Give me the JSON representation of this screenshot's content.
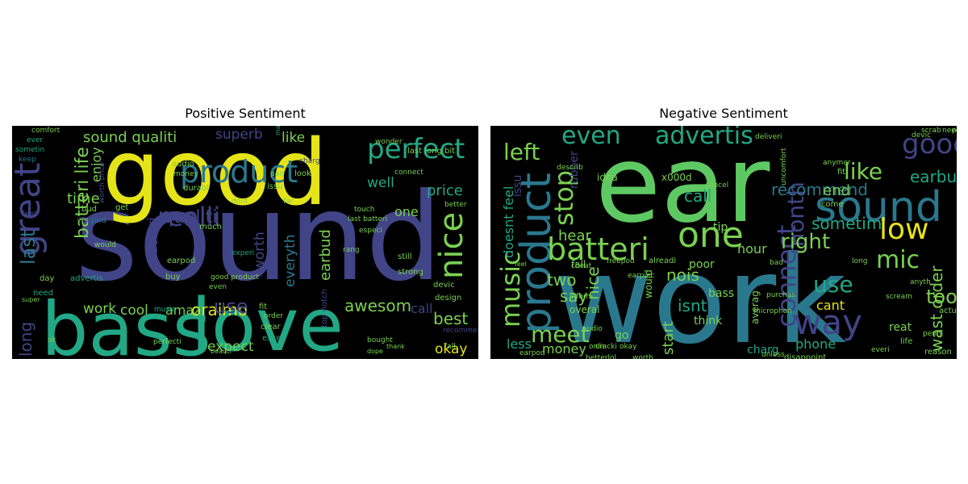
{
  "panels": [
    {
      "title": "Positive Sentiment",
      "words": [
        {
          "text": "sound",
          "color": "#414487"
        },
        {
          "text": "good",
          "color": "#e5e419"
        },
        {
          "text": "bass",
          "color": "#22a884"
        },
        {
          "text": "love",
          "color": "#22a884"
        },
        {
          "text": "product",
          "color": "#2a788e"
        },
        {
          "text": "great",
          "color": "#414487"
        },
        {
          "text": "realli",
          "color": "#414487"
        },
        {
          "text": "perfect",
          "color": "#22a884"
        },
        {
          "text": "nice",
          "color": "#7ad151"
        },
        {
          "text": "qualiti",
          "color": "#414487"
        },
        {
          "text": "batteri life",
          "color": "#7ad151"
        },
        {
          "text": "last",
          "color": "#2a788e"
        },
        {
          "text": "long",
          "color": "#414487"
        },
        {
          "text": "batteri",
          "color": "#414487"
        },
        {
          "text": "work",
          "color": "#7ad151"
        },
        {
          "text": "cool",
          "color": "#7ad151"
        },
        {
          "text": "oraimo",
          "color": "#e5e419"
        },
        {
          "text": "use",
          "color": "#414487"
        },
        {
          "text": "awesom",
          "color": "#7ad151"
        },
        {
          "text": "best",
          "color": "#7ad151"
        },
        {
          "text": "okay",
          "color": "#e5e419"
        },
        {
          "text": "expect",
          "color": "#7ad151"
        },
        {
          "text": "earbud",
          "color": "#7ad151"
        },
        {
          "text": "everyth",
          "color": "#2a788e"
        },
        {
          "text": "worth",
          "color": "#414487"
        },
        {
          "text": "amaz",
          "color": "#7ad151"
        },
        {
          "text": "time",
          "color": "#7ad151"
        },
        {
          "text": "enjoy",
          "color": "#7ad151"
        },
        {
          "text": "sound qualiti",
          "color": "#7ad151"
        },
        {
          "text": "superb",
          "color": "#414487"
        },
        {
          "text": "like",
          "color": "#7ad151"
        },
        {
          "text": "price",
          "color": "#22a884"
        },
        {
          "text": "one",
          "color": "#7ad151"
        },
        {
          "text": "well",
          "color": "#22a884"
        },
        {
          "text": "call",
          "color": "#414487"
        },
        {
          "text": "comfort",
          "color": "#7ad151"
        },
        {
          "text": "ever",
          "color": "#22a884"
        },
        {
          "text": "sometin",
          "color": "#22a884"
        },
        {
          "text": "keep",
          "color": "#2a788e"
        },
        {
          "text": "bud",
          "color": "#7ad151"
        },
        {
          "text": "pod",
          "color": "#2a788e"
        },
        {
          "text": "worth price",
          "color": "#414487"
        },
        {
          "text": "audio",
          "color": "#7ad151"
        },
        {
          "text": "money",
          "color": "#7ad151"
        },
        {
          "text": "durabl",
          "color": "#7ad151"
        },
        {
          "text": "get",
          "color": "#7ad151"
        },
        {
          "text": "improv",
          "color": "#414487"
        },
        {
          "text": "feel",
          "color": "#414487"
        },
        {
          "text": "day",
          "color": "#7ad151"
        },
        {
          "text": "advertis",
          "color": "#22a884"
        },
        {
          "text": "need",
          "color": "#22a884"
        },
        {
          "text": "would",
          "color": "#7ad151"
        },
        {
          "text": "earpod",
          "color": "#7ad151"
        },
        {
          "text": "buy",
          "color": "#7ad151"
        },
        {
          "text": "much",
          "color": "#7ad151"
        },
        {
          "text": "experi",
          "color": "#22a884"
        },
        {
          "text": "music",
          "color": "#22a884"
        },
        {
          "text": "good product",
          "color": "#7ad151"
        },
        {
          "text": "even",
          "color": "#7ad151"
        },
        {
          "text": "fit",
          "color": "#7ad151"
        },
        {
          "text": "order",
          "color": "#7ad151"
        },
        {
          "text": "clear",
          "color": "#7ad151"
        },
        {
          "text": "excel",
          "color": "#22a884"
        },
        {
          "text": "perfecti",
          "color": "#7ad151"
        },
        {
          "text": "strong",
          "color": "#7ad151"
        },
        {
          "text": "still",
          "color": "#7ad151"
        },
        {
          "text": "devic",
          "color": "#7ad151"
        },
        {
          "text": "design",
          "color": "#7ad151"
        },
        {
          "text": "recommend",
          "color": "#414487"
        },
        {
          "text": "fall",
          "color": "#7ad151"
        },
        {
          "text": "bought",
          "color": "#7ad151"
        },
        {
          "text": "dope",
          "color": "#7ad151"
        },
        {
          "text": "ok",
          "color": "#7ad151"
        },
        {
          "text": "super",
          "color": "#7ad151"
        },
        {
          "text": "beauti",
          "color": "#7ad151"
        },
        {
          "text": "top notch",
          "color": "#414487"
        },
        {
          "text": "charg",
          "color": "#414487"
        },
        {
          "text": "pair",
          "color": "#7ad151"
        },
        {
          "text": "issu",
          "color": "#7ad151"
        },
        {
          "text": "look",
          "color": "#7ad151"
        },
        {
          "text": "far",
          "color": "#7ad151"
        },
        {
          "text": "connect",
          "color": "#7ad151"
        },
        {
          "text": "wonder",
          "color": "#7ad151"
        },
        {
          "text": "last long bit",
          "color": "#7ad151"
        },
        {
          "text": "better",
          "color": "#7ad151"
        },
        {
          "text": "touch",
          "color": "#7ad151"
        },
        {
          "text": "last batteri",
          "color": "#7ad151"
        },
        {
          "text": "rang",
          "color": "#7ad151"
        },
        {
          "text": "make",
          "color": "#22a884"
        },
        {
          "text": "dont",
          "color": "#7ad151"
        },
        {
          "text": "thank",
          "color": "#7ad151"
        },
        {
          "text": "especi",
          "color": "#7ad151"
        }
      ]
    },
    {
      "title": "Negative Sentiment",
      "words": [
        {
          "text": "work",
          "color": "#2a788e"
        },
        {
          "text": "ear",
          "color": "#5ec962"
        },
        {
          "text": "product",
          "color": "#2a788e"
        },
        {
          "text": "sound",
          "color": "#2a788e"
        },
        {
          "text": "one",
          "color": "#7ad151"
        },
        {
          "text": "batteri",
          "color": "#7ad151"
        },
        {
          "text": "music",
          "color": "#7ad151"
        },
        {
          "text": "stop",
          "color": "#7ad151"
        },
        {
          "text": "way",
          "color": "#414487"
        },
        {
          "text": "connect",
          "color": "#414487"
        },
        {
          "text": "month",
          "color": "#414487"
        },
        {
          "text": "good",
          "color": "#414487"
        },
        {
          "text": "low",
          "color": "#e5e419"
        },
        {
          "text": "like",
          "color": "#7ad151"
        },
        {
          "text": "mic",
          "color": "#7ad151"
        },
        {
          "text": "even",
          "color": "#22a884"
        },
        {
          "text": "advertis",
          "color": "#22a884"
        },
        {
          "text": "left",
          "color": "#7ad151"
        },
        {
          "text": "meet",
          "color": "#7ad151"
        },
        {
          "text": "right",
          "color": "#7ad151"
        },
        {
          "text": "use",
          "color": "#22a884"
        },
        {
          "text": "took",
          "color": "#7ad151"
        },
        {
          "text": "wast order",
          "color": "#7ad151"
        },
        {
          "text": "recommend",
          "color": "#2a788e"
        },
        {
          "text": "earbud",
          "color": "#22a884"
        },
        {
          "text": "end",
          "color": "#7ad151"
        },
        {
          "text": "call",
          "color": "#22a884"
        },
        {
          "text": "nois",
          "color": "#7ad151"
        },
        {
          "text": "hear",
          "color": "#7ad151"
        },
        {
          "text": "nice",
          "color": "#7ad151"
        },
        {
          "text": "two",
          "color": "#7ad151"
        },
        {
          "text": "say",
          "color": "#7ad151"
        },
        {
          "text": "cant",
          "color": "#e5e419"
        },
        {
          "text": "sometim",
          "color": "#22a884"
        },
        {
          "text": "phone",
          "color": "#22a884"
        },
        {
          "text": "isnt",
          "color": "#22a884"
        },
        {
          "text": "start",
          "color": "#7ad151"
        },
        {
          "text": "money",
          "color": "#7ad151"
        },
        {
          "text": "less",
          "color": "#22a884"
        },
        {
          "text": "doesnt feel",
          "color": "#22a884"
        },
        {
          "text": "issu",
          "color": "#414487"
        },
        {
          "text": "rubber",
          "color": "#414487"
        },
        {
          "text": "poor",
          "color": "#7ad151"
        },
        {
          "text": "tip",
          "color": "#7ad151"
        },
        {
          "text": "hour",
          "color": "#7ad151"
        },
        {
          "text": "bass",
          "color": "#7ad151"
        },
        {
          "text": "think",
          "color": "#7ad151"
        },
        {
          "text": "charg",
          "color": "#22a884"
        },
        {
          "text": "go",
          "color": "#7ad151"
        },
        {
          "text": "would",
          "color": "#7ad151"
        },
        {
          "text": "averag",
          "color": "#7ad151"
        },
        {
          "text": "idea",
          "color": "#7ad151"
        },
        {
          "text": "x000d",
          "color": "#7ad151"
        },
        {
          "text": "fall",
          "color": "#7ad151"
        },
        {
          "text": "overal",
          "color": "#7ad151"
        },
        {
          "text": "inform",
          "color": "#7ad151"
        },
        {
          "text": "reat",
          "color": "#7ad151"
        },
        {
          "text": "life",
          "color": "#7ad151"
        },
        {
          "text": "actual",
          "color": "#7ad151"
        },
        {
          "text": "come",
          "color": "#7ad151"
        },
        {
          "text": "fit",
          "color": "#7ad151"
        },
        {
          "text": "devic",
          "color": "#7ad151"
        },
        {
          "text": "scrab",
          "color": "#7ad151"
        },
        {
          "text": "need",
          "color": "#7ad151"
        },
        {
          "text": "pick",
          "color": "#7ad151"
        },
        {
          "text": "describ",
          "color": "#7ad151"
        },
        {
          "text": "anymor",
          "color": "#7ad151"
        },
        {
          "text": "deliveri",
          "color": "#7ad151"
        },
        {
          "text": "disappoint",
          "color": "#7ad151"
        },
        {
          "text": "unless",
          "color": "#7ad151"
        },
        {
          "text": "reason",
          "color": "#7ad151"
        },
        {
          "text": "earpod",
          "color": "#7ad151"
        },
        {
          "text": "betterlol",
          "color": "#7ad151"
        },
        {
          "text": "worth",
          "color": "#7ad151"
        },
        {
          "text": "okay",
          "color": "#7ad151"
        },
        {
          "text": "long",
          "color": "#7ad151"
        },
        {
          "text": "anyth",
          "color": "#7ad151"
        },
        {
          "text": "scream",
          "color": "#7ad151"
        },
        {
          "text": "cheat",
          "color": "#7ad151"
        },
        {
          "text": "freepod",
          "color": "#7ad151"
        },
        {
          "text": "alreadi",
          "color": "#7ad151"
        },
        {
          "text": "purchas",
          "color": "#7ad151"
        },
        {
          "text": "bad",
          "color": "#7ad151"
        },
        {
          "text": "cancel",
          "color": "#7ad151"
        },
        {
          "text": "feel",
          "color": "#7ad151"
        },
        {
          "text": "audio",
          "color": "#7ad151"
        },
        {
          "text": "cracki",
          "color": "#7ad151"
        },
        {
          "text": "onlin",
          "color": "#7ad151"
        },
        {
          "text": "uncomfort",
          "color": "#7ad151"
        },
        {
          "text": "earpiec",
          "color": "#7ad151"
        },
        {
          "text": "microphon",
          "color": "#7ad151"
        },
        {
          "text": "everi",
          "color": "#7ad151"
        },
        {
          "text": "penni",
          "color": "#7ad151"
        }
      ]
    }
  ]
}
